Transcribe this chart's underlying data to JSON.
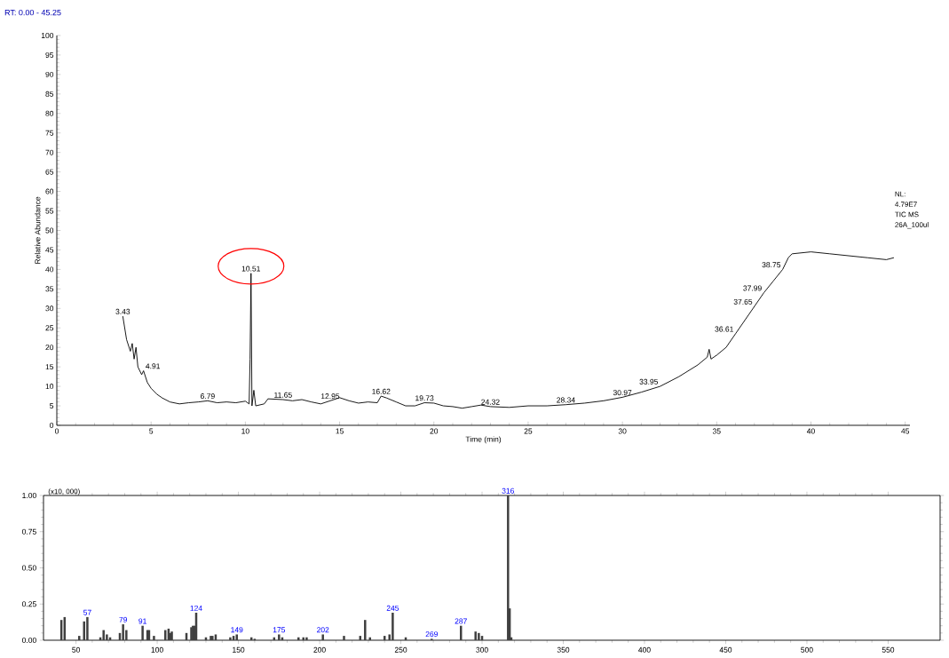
{
  "chart_data": [
    {
      "type": "line",
      "title": "RT: 0.00 - 45.25",
      "xlabel": "Time (min)",
      "ylabel": "Relative Abundance",
      "xlim": [
        0,
        45.25
      ],
      "ylim": [
        0,
        100
      ],
      "xticks": [
        0,
        5,
        10,
        15,
        20,
        25,
        30,
        35,
        40,
        45
      ],
      "yticks": [
        0,
        5,
        10,
        15,
        20,
        25,
        30,
        35,
        40,
        45,
        50,
        55,
        60,
        65,
        70,
        75,
        80,
        85,
        90,
        95,
        100
      ],
      "series": [
        {
          "color": "#000000",
          "x": [
            3.5,
            3.7,
            3.9,
            4.0,
            4.1,
            4.2,
            4.3,
            4.5,
            4.6,
            4.8,
            5.0,
            5.3,
            5.6,
            6.0,
            6.5,
            7.0,
            7.5,
            8.0,
            8.5,
            9.0,
            9.5,
            10.0,
            10.2,
            10.25,
            10.3,
            10.35,
            10.45,
            10.55,
            11.0,
            11.2,
            12.0,
            12.5,
            13.0,
            13.5,
            14.0,
            14.5,
            15.0,
            15.5,
            16.0,
            16.5,
            17.0,
            17.2,
            17.5,
            18.0,
            18.5,
            19.0,
            19.5,
            20.0,
            20.5,
            21.0,
            21.5,
            22.0,
            22.5,
            23.0,
            24.0,
            25.0,
            26.0,
            27.0,
            28.0,
            29.0,
            30.0,
            31.0,
            32.0,
            33.0,
            34.0,
            34.5,
            34.6,
            34.7,
            35.0,
            35.5,
            36.0,
            36.5,
            37.0,
            37.5,
            38.0,
            38.5,
            38.8,
            39.0,
            40.0,
            41.0,
            42.0,
            43.0,
            44.0,
            44.4
          ],
          "values": [
            28,
            22,
            19,
            21,
            17,
            20,
            15,
            13,
            14,
            11,
            9.5,
            8,
            7,
            6,
            5.5,
            5.8,
            6,
            6.3,
            5.8,
            6,
            5.8,
            6.2,
            5.5,
            17,
            39,
            5,
            9,
            5,
            5.5,
            6.8,
            6.6,
            6.3,
            6.6,
            6.0,
            5.5,
            6.3,
            7.1,
            6.3,
            5.7,
            6,
            5.8,
            7.5,
            7,
            6,
            5,
            5,
            5.8,
            5.7,
            5,
            4.8,
            4.4,
            4.8,
            5.2,
            4.8,
            4.6,
            5,
            5,
            5.3,
            5.7,
            6.3,
            7.2,
            8.5,
            10,
            12.5,
            15.5,
            17.5,
            19.5,
            17,
            18,
            20,
            23.5,
            27,
            30.5,
            34,
            37,
            40,
            43,
            44,
            44.5,
            44,
            43.5,
            43,
            42.5,
            43
          ]
        }
      ],
      "annotations": [
        {
          "text": "3.43",
          "x": 3.5,
          "y": 28
        },
        {
          "text": "4.91",
          "x": 4.6,
          "y": 14
        },
        {
          "text": "6.79",
          "x": 8.0,
          "y": 6.3
        },
        {
          "text": "10.51",
          "x": 10.3,
          "y": 39
        },
        {
          "text": "11.65",
          "x": 12.0,
          "y": 6.6
        },
        {
          "text": "12.95",
          "x": 14.5,
          "y": 6.3
        },
        {
          "text": "16.62",
          "x": 17.2,
          "y": 7.5
        },
        {
          "text": "19.73",
          "x": 19.5,
          "y": 5.8
        },
        {
          "text": "24.32",
          "x": 23.0,
          "y": 4.8
        },
        {
          "text": "28.34",
          "x": 27.0,
          "y": 5.3
        },
        {
          "text": "30.97",
          "x": 30.0,
          "y": 7.2
        },
        {
          "text": "33.95",
          "x": 32.0,
          "y": 10
        },
        {
          "text": "36.61",
          "x": 36.0,
          "y": 23.5
        },
        {
          "text": "37.65",
          "x": 37.0,
          "y": 30.5
        },
        {
          "text": "37.99",
          "x": 37.5,
          "y": 34
        },
        {
          "text": "38.75",
          "x": 38.5,
          "y": 40
        },
        "NL:",
        "4.79E7",
        "TIC MS",
        "26A_100ul"
      ]
    },
    {
      "type": "bar",
      "color": "#404040",
      "xlim": [
        30,
        582
      ],
      "ylim": [
        0,
        1.0
      ],
      "xticks": [
        50,
        100,
        150,
        200,
        250,
        300,
        350,
        400,
        450,
        500,
        550
      ],
      "yticks": [
        {
          "value": 0,
          "label": "0.00"
        },
        {
          "value": 0.25,
          "label": "0.25"
        },
        {
          "value": 0.5,
          "label": "0.50"
        },
        {
          "value": 0.75,
          "label": "0.75"
        },
        {
          "value": 1.0,
          "label": "1.00"
        }
      ],
      "x": [
        41,
        43,
        52,
        55,
        57,
        65,
        67,
        69,
        71,
        77,
        79,
        81,
        91,
        94,
        95,
        98,
        105,
        107,
        108,
        109,
        118,
        121,
        122,
        123,
        124,
        130,
        133,
        134,
        136,
        145,
        147,
        149,
        158,
        160,
        172,
        175,
        177,
        187,
        190,
        192,
        202,
        215,
        225,
        228,
        231,
        240,
        243,
        245,
        253,
        269,
        287,
        296,
        298,
        300,
        316,
        317,
        318
      ],
      "values": [
        0.14,
        0.16,
        0.03,
        0.13,
        0.16,
        0.02,
        0.07,
        0.04,
        0.02,
        0.05,
        0.11,
        0.07,
        0.1,
        0.07,
        0.07,
        0.03,
        0.07,
        0.08,
        0.05,
        0.06,
        0.05,
        0.09,
        0.1,
        0.1,
        0.19,
        0.02,
        0.03,
        0.03,
        0.04,
        0.02,
        0.03,
        0.04,
        0.02,
        0.01,
        0.02,
        0.04,
        0.02,
        0.02,
        0.02,
        0.02,
        0.04,
        0.03,
        0.03,
        0.14,
        0.02,
        0.03,
        0.04,
        0.19,
        0.02,
        0.01,
        0.1,
        0.06,
        0.05,
        0.03,
        1.0,
        0.22,
        0.02
      ],
      "annotations": [
        "(x10, 000)",
        {
          "text": "57",
          "x": 57,
          "y": 0.16
        },
        {
          "text": "79",
          "x": 79,
          "y": 0.11
        },
        {
          "text": "91",
          "x": 91,
          "y": 0.1
        },
        {
          "text": "124",
          "x": 124,
          "y": 0.19
        },
        {
          "text": "149",
          "x": 149,
          "y": 0.04
        },
        {
          "text": "175",
          "x": 175,
          "y": 0.04
        },
        {
          "text": "202",
          "x": 202,
          "y": 0.04
        },
        {
          "text": "245",
          "x": 245,
          "y": 0.19
        },
        {
          "text": "269",
          "x": 269,
          "y": 0.01
        },
        {
          "text": "287",
          "x": 287,
          "y": 0.1
        },
        {
          "text": "316",
          "x": 316,
          "y": 1.0
        }
      ]
    }
  ]
}
